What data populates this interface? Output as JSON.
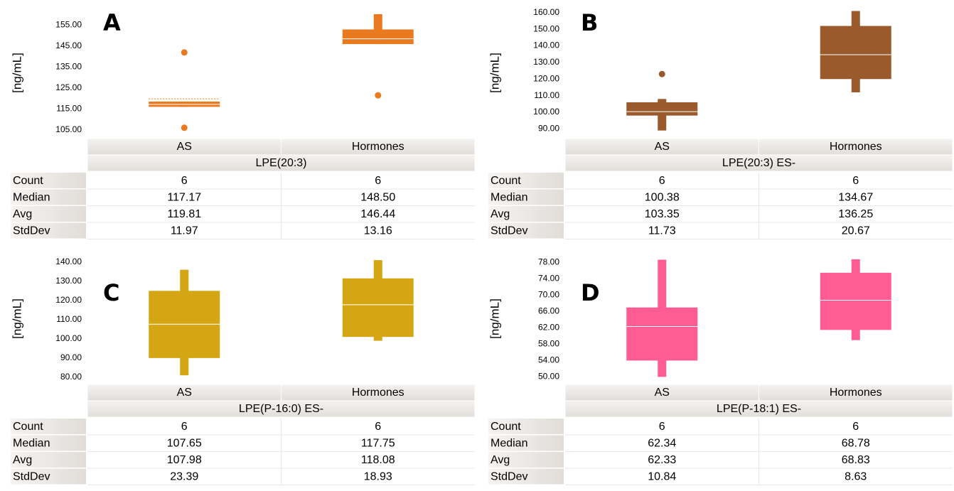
{
  "chart_data": [
    {
      "type": "box",
      "panel": "A",
      "ylabel": "[ng/mL]",
      "group": "LPE(20:3)",
      "categories": [
        "AS",
        "Hormones"
      ],
      "color": "#e97a1f",
      "ylim": [
        101.5,
        163
      ],
      "yticks": [
        {
          "value": 105,
          "label": "105.00"
        },
        {
          "value": 115,
          "label": "115.00"
        },
        {
          "value": 125,
          "label": "125.00"
        },
        {
          "value": 135,
          "label": "135.00"
        },
        {
          "value": 145,
          "label": "145.00"
        },
        {
          "value": 155,
          "label": "155.00"
        }
      ],
      "boxes": [
        {
          "whislo": 116,
          "q1": 116,
          "med": 117.17,
          "q3": 118.5,
          "whishi": 118.5,
          "mean": 119.81,
          "fliers": [
            142,
            106
          ]
        },
        {
          "whislo": 146,
          "q1": 146,
          "med": 148.5,
          "q3": 153,
          "whishi": 160.3,
          "mean": 146.44,
          "fliers": [
            121.5
          ]
        }
      ],
      "table": {
        "rows": [
          {
            "label": "Count",
            "values": [
              "6",
              "6"
            ]
          },
          {
            "label": "Median",
            "values": [
              "117.17",
              "148.50"
            ]
          },
          {
            "label": "Avg",
            "values": [
              "119.81",
              "146.44"
            ]
          },
          {
            "label": "StdDev",
            "values": [
              "11.97",
              "13.16"
            ]
          }
        ]
      }
    },
    {
      "type": "box",
      "panel": "B",
      "ylabel": "[ng/mL]",
      "group": "LPE(20:3) ES-",
      "categories": [
        "AS",
        "Hormones"
      ],
      "color": "#9a5a2b",
      "ylim": [
        85,
        162.5
      ],
      "yticks": [
        {
          "value": 90,
          "label": "90.00"
        },
        {
          "value": 100,
          "label": "100.00"
        },
        {
          "value": 110,
          "label": "110.00"
        },
        {
          "value": 120,
          "label": "120.00"
        },
        {
          "value": 130,
          "label": "130.00"
        },
        {
          "value": 140,
          "label": "140.00"
        },
        {
          "value": 150,
          "label": "150.00"
        },
        {
          "value": 160,
          "label": "160.00"
        }
      ],
      "boxes": [
        {
          "whislo": 89,
          "q1": 98,
          "med": 100.38,
          "q3": 106,
          "whishi": 108,
          "mean": 103.35,
          "fliers": [
            123
          ]
        },
        {
          "whislo": 112,
          "q1": 120,
          "med": 134.67,
          "q3": 152,
          "whishi": 161,
          "mean": 136.25,
          "fliers": []
        }
      ],
      "table": {
        "rows": [
          {
            "label": "Count",
            "values": [
              "6",
              "6"
            ]
          },
          {
            "label": "Median",
            "values": [
              "100.38",
              "134.67"
            ]
          },
          {
            "label": "Avg",
            "values": [
              "103.35",
              "136.25"
            ]
          },
          {
            "label": "StdDev",
            "values": [
              "11.73",
              "20.67"
            ]
          }
        ]
      }
    },
    {
      "type": "box",
      "panel": "C",
      "ylabel": "[ng/mL]",
      "group": "LPE(P-16:0) ES-",
      "categories": [
        "AS",
        "Hormones"
      ],
      "color": "#d4a614",
      "ylim": [
        77,
        144
      ],
      "yticks": [
        {
          "value": 80,
          "label": "80.00"
        },
        {
          "value": 90,
          "label": "90.00"
        },
        {
          "value": 100,
          "label": "100.00"
        },
        {
          "value": 110,
          "label": "110.00"
        },
        {
          "value": 120,
          "label": "120.00"
        },
        {
          "value": 130,
          "label": "130.00"
        },
        {
          "value": 140,
          "label": "140.00"
        }
      ],
      "boxes": [
        {
          "whislo": 81,
          "q1": 90,
          "med": 107.65,
          "q3": 125,
          "whishi": 136,
          "fliers": []
        },
        {
          "whislo": 99,
          "q1": 101,
          "med": 117.75,
          "q3": 131.5,
          "whishi": 141,
          "fliers": []
        }
      ],
      "table": {
        "rows": [
          {
            "label": "Count",
            "values": [
              "6",
              "6"
            ]
          },
          {
            "label": "Median",
            "values": [
              "107.65",
              "117.75"
            ]
          },
          {
            "label": "Avg",
            "values": [
              "107.98",
              "118.08"
            ]
          },
          {
            "label": "StdDev",
            "values": [
              "23.39",
              "18.93"
            ]
          }
        ]
      }
    },
    {
      "type": "box",
      "panel": "D",
      "ylabel": "[ng/mL]",
      "group": "LPE(P-18:1) ES-",
      "categories": [
        "AS",
        "Hormones"
      ],
      "color": "#ff5c93",
      "ylim": [
        48.5,
        80
      ],
      "yticks": [
        {
          "value": 50,
          "label": "50.00"
        },
        {
          "value": 54,
          "label": "54.00"
        },
        {
          "value": 58,
          "label": "58.00"
        },
        {
          "value": 62,
          "label": "62.00"
        },
        {
          "value": 66,
          "label": "66.00"
        },
        {
          "value": 70,
          "label": "70.00"
        },
        {
          "value": 74,
          "label": "74.00"
        },
        {
          "value": 78,
          "label": "78.00"
        }
      ],
      "boxes": [
        {
          "whislo": 50,
          "q1": 54,
          "med": 62.34,
          "q3": 67,
          "whishi": 78.7,
          "fliers": []
        },
        {
          "whislo": 59,
          "q1": 61.5,
          "med": 68.78,
          "q3": 75.5,
          "whishi": 78.8,
          "fliers": []
        }
      ],
      "table": {
        "rows": [
          {
            "label": "Count",
            "values": [
              "6",
              "6"
            ]
          },
          {
            "label": "Median",
            "values": [
              "62.34",
              "68.78"
            ]
          },
          {
            "label": "Avg",
            "values": [
              "62.33",
              "68.83"
            ]
          },
          {
            "label": "StdDev",
            "values": [
              "10.84",
              "8.63"
            ]
          }
        ]
      }
    }
  ]
}
